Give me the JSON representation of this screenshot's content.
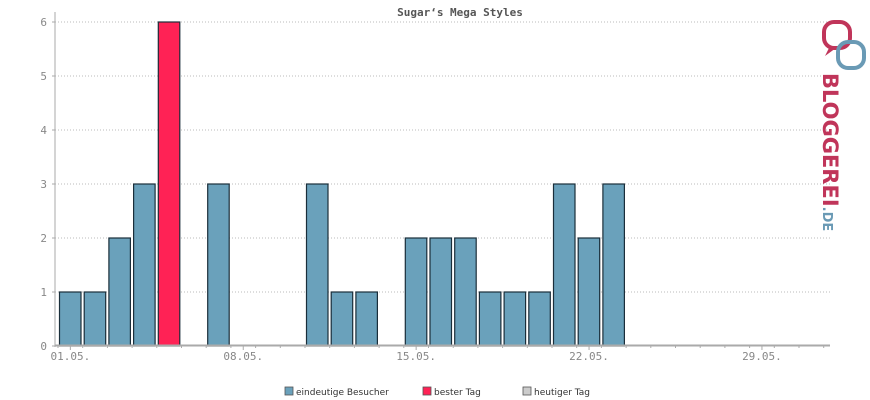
{
  "chart_data": {
    "type": "bar",
    "title": "Sugar‘s Mega Styles",
    "xlabel": "",
    "ylabel": "",
    "ylim": [
      0,
      6
    ],
    "yticks": [
      0,
      1,
      2,
      3,
      4,
      5,
      6
    ],
    "grid": true,
    "legend_position": "bottom-center",
    "days": 31,
    "x_tick_labels": [
      {
        "day": 1,
        "label": "01.05."
      },
      {
        "day": 8,
        "label": "08.05."
      },
      {
        "day": 15,
        "label": "15.05."
      },
      {
        "day": 22,
        "label": "22.05."
      },
      {
        "day": 29,
        "label": "29.05."
      }
    ],
    "series": [
      {
        "name": "eindeutige Besucher",
        "color": "#6aa1bb",
        "values": [
          1,
          1,
          2,
          3,
          6,
          0,
          3,
          0,
          0,
          0,
          3,
          1,
          1,
          0,
          2,
          2,
          2,
          1,
          1,
          1,
          3,
          2,
          3,
          0,
          0,
          0,
          0,
          0,
          0,
          0,
          0
        ]
      }
    ],
    "best_day": 5,
    "best_color": "#ff2255",
    "today_color": "#cccccc"
  },
  "legend": [
    {
      "label": "eindeutige Besucher",
      "color": "#6aa1bb"
    },
    {
      "label": "bester Tag",
      "color": "#ff2255"
    },
    {
      "label": "heutiger Tag",
      "color": "#cccccc"
    }
  ],
  "logo": {
    "main": "BLOGGEREI",
    "suffix": ".DE",
    "main_color": "#c0355a",
    "suffix_color": "#6a9ab5",
    "icon": "linked-speech-bubbles-icon"
  }
}
